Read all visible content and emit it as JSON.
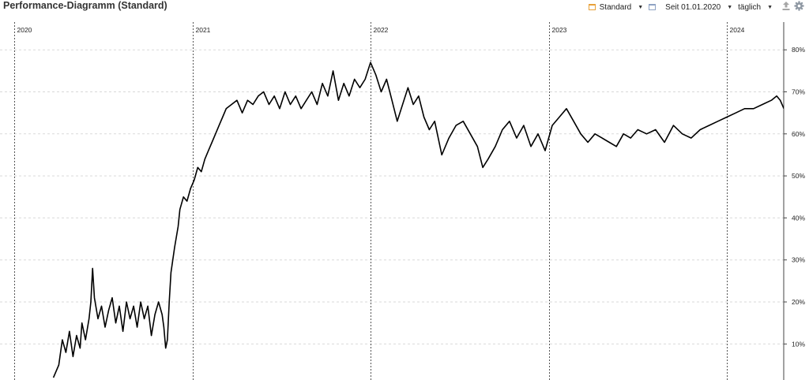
{
  "header": {
    "title": "Performance-Diagramm (Standard)",
    "view_label": "Standard",
    "range_label": "Seit 01.01.2020",
    "interval_label": "täglich",
    "icons": [
      "standard-layout-icon",
      "calendar-icon",
      "export-icon",
      "settings-icon"
    ]
  },
  "colors": {
    "line": "#000000",
    "grid": "#d9d9d9",
    "year_divider": "#555555",
    "accent_orange": "#e8a13a"
  },
  "chart_data": {
    "type": "line",
    "title": "Performance-Diagramm (Standard)",
    "x_year_labels": [
      "2020",
      "2021",
      "2022",
      "2023",
      "2024"
    ],
    "y_tick_labels": [
      "10%",
      "20%",
      "30%",
      "40%",
      "50%",
      "60%",
      "70%",
      "80%"
    ],
    "ylim": [
      2,
      85
    ],
    "y_axis_side": "right",
    "grid": "horizontal dashed",
    "series": [
      {
        "points": [
          [
            2020.22,
            2
          ],
          [
            2020.25,
            5
          ],
          [
            2020.27,
            11
          ],
          [
            2020.29,
            8
          ],
          [
            2020.31,
            13
          ],
          [
            2020.33,
            7
          ],
          [
            2020.35,
            12
          ],
          [
            2020.37,
            9
          ],
          [
            2020.38,
            15
          ],
          [
            2020.4,
            11
          ],
          [
            2020.42,
            16
          ],
          [
            2020.43,
            20
          ],
          [
            2020.44,
            28
          ],
          [
            2020.45,
            21
          ],
          [
            2020.47,
            16
          ],
          [
            2020.49,
            19
          ],
          [
            2020.51,
            14
          ],
          [
            2020.53,
            18
          ],
          [
            2020.55,
            21
          ],
          [
            2020.57,
            15
          ],
          [
            2020.59,
            19
          ],
          [
            2020.61,
            13
          ],
          [
            2020.63,
            20
          ],
          [
            2020.65,
            16
          ],
          [
            2020.67,
            19
          ],
          [
            2020.69,
            14
          ],
          [
            2020.71,
            20
          ],
          [
            2020.73,
            16
          ],
          [
            2020.75,
            19
          ],
          [
            2020.77,
            12
          ],
          [
            2020.79,
            17
          ],
          [
            2020.81,
            20
          ],
          [
            2020.83,
            17
          ],
          [
            2020.84,
            14
          ],
          [
            2020.85,
            9
          ],
          [
            2020.86,
            11
          ],
          [
            2020.87,
            20
          ],
          [
            2020.88,
            27
          ],
          [
            2020.9,
            33
          ],
          [
            2020.92,
            38
          ],
          [
            2020.93,
            42
          ],
          [
            2020.95,
            45
          ],
          [
            2020.97,
            44
          ],
          [
            2020.99,
            47
          ],
          [
            2021.01,
            49
          ],
          [
            2021.03,
            52
          ],
          [
            2021.05,
            51
          ],
          [
            2021.07,
            54
          ],
          [
            2021.09,
            56
          ],
          [
            2021.11,
            58
          ],
          [
            2021.13,
            60
          ],
          [
            2021.15,
            62
          ],
          [
            2021.17,
            64
          ],
          [
            2021.19,
            66
          ],
          [
            2021.22,
            67
          ],
          [
            2021.25,
            68
          ],
          [
            2021.28,
            65
          ],
          [
            2021.31,
            68
          ],
          [
            2021.34,
            67
          ],
          [
            2021.37,
            69
          ],
          [
            2021.4,
            70
          ],
          [
            2021.43,
            67
          ],
          [
            2021.46,
            69
          ],
          [
            2021.49,
            66
          ],
          [
            2021.52,
            70
          ],
          [
            2021.55,
            67
          ],
          [
            2021.58,
            69
          ],
          [
            2021.61,
            66
          ],
          [
            2021.64,
            68
          ],
          [
            2021.67,
            70
          ],
          [
            2021.7,
            67
          ],
          [
            2021.73,
            72
          ],
          [
            2021.76,
            69
          ],
          [
            2021.79,
            75
          ],
          [
            2021.82,
            68
          ],
          [
            2021.85,
            72
          ],
          [
            2021.88,
            69
          ],
          [
            2021.91,
            73
          ],
          [
            2021.94,
            71
          ],
          [
            2021.97,
            73
          ],
          [
            2022.0,
            77
          ],
          [
            2022.03,
            74
          ],
          [
            2022.06,
            70
          ],
          [
            2022.09,
            73
          ],
          [
            2022.12,
            68
          ],
          [
            2022.15,
            63
          ],
          [
            2022.18,
            67
          ],
          [
            2022.21,
            71
          ],
          [
            2022.24,
            67
          ],
          [
            2022.27,
            69
          ],
          [
            2022.3,
            64
          ],
          [
            2022.33,
            61
          ],
          [
            2022.36,
            63
          ],
          [
            2022.4,
            55
          ],
          [
            2022.44,
            59
          ],
          [
            2022.48,
            62
          ],
          [
            2022.52,
            63
          ],
          [
            2022.56,
            60
          ],
          [
            2022.6,
            57
          ],
          [
            2022.63,
            52
          ],
          [
            2022.66,
            54
          ],
          [
            2022.7,
            57
          ],
          [
            2022.74,
            61
          ],
          [
            2022.78,
            63
          ],
          [
            2022.82,
            59
          ],
          [
            2022.86,
            62
          ],
          [
            2022.9,
            57
          ],
          [
            2022.94,
            60
          ],
          [
            2022.98,
            56
          ],
          [
            2023.02,
            62
          ],
          [
            2023.06,
            64
          ],
          [
            2023.1,
            66
          ],
          [
            2023.14,
            63
          ],
          [
            2023.18,
            60
          ],
          [
            2023.22,
            58
          ],
          [
            2023.26,
            60
          ],
          [
            2023.3,
            59
          ],
          [
            2023.34,
            58
          ],
          [
            2023.38,
            57
          ],
          [
            2023.42,
            60
          ],
          [
            2023.46,
            59
          ],
          [
            2023.5,
            61
          ],
          [
            2023.55,
            60
          ],
          [
            2023.6,
            61
          ],
          [
            2023.65,
            58
          ],
          [
            2023.7,
            62
          ],
          [
            2023.75,
            60
          ],
          [
            2023.8,
            59
          ],
          [
            2023.85,
            61
          ],
          [
            2023.9,
            62
          ],
          [
            2023.95,
            63
          ],
          [
            2024.0,
            64
          ],
          [
            2024.05,
            65
          ],
          [
            2024.1,
            66
          ],
          [
            2024.15,
            66
          ],
          [
            2024.2,
            67
          ],
          [
            2024.25,
            68
          ],
          [
            2024.28,
            69
          ],
          [
            2024.3,
            68
          ],
          [
            2024.32,
            66
          ]
        ]
      }
    ]
  }
}
